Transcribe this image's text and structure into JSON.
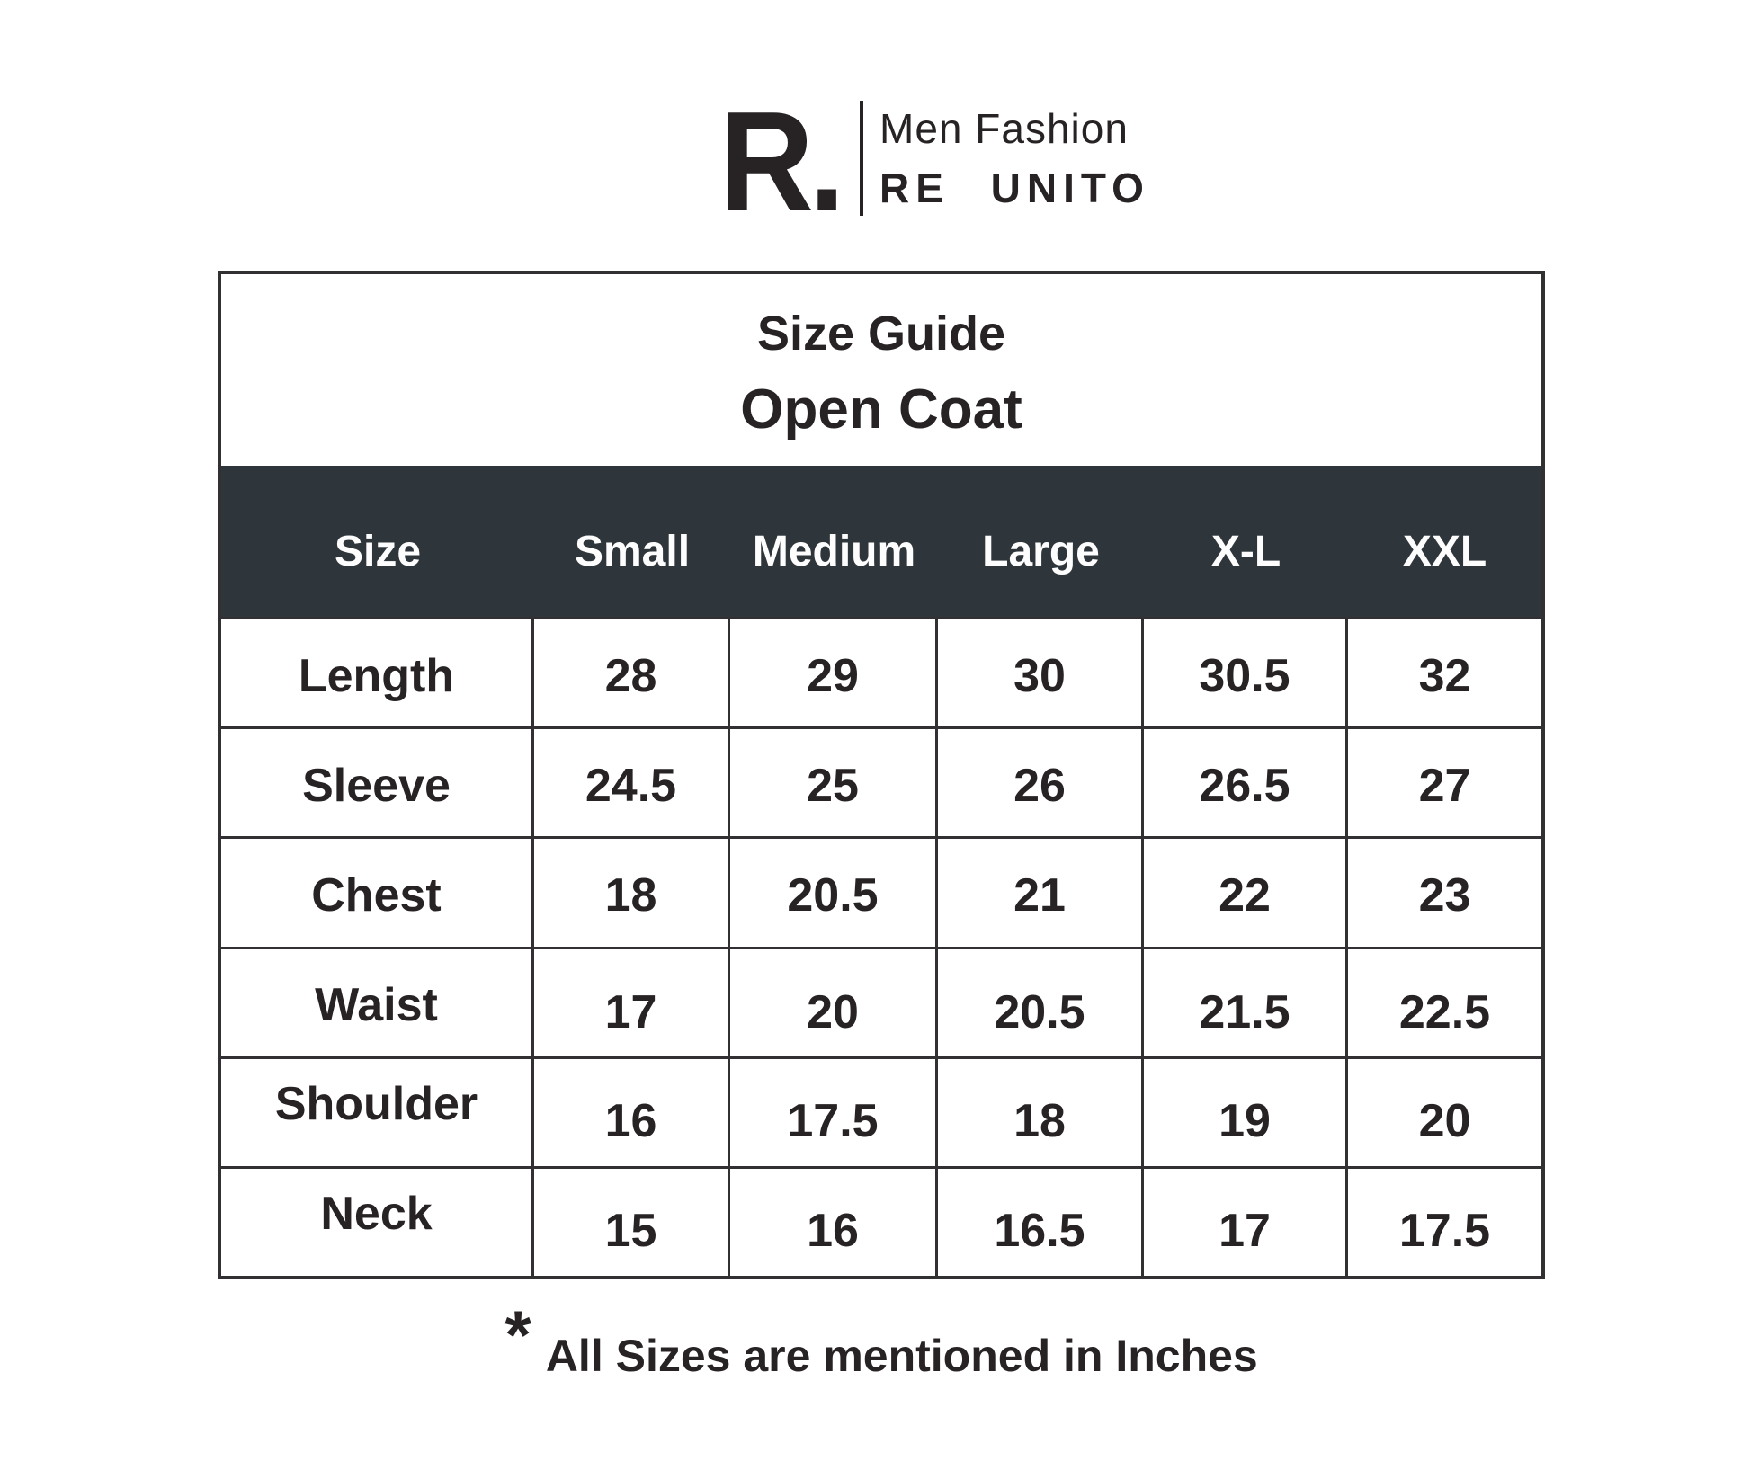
{
  "logo": {
    "monogram": "R.",
    "tagline": "Men Fashion",
    "brand": "RE UNITO"
  },
  "chart_data": {
    "type": "table",
    "title": "Size Guide",
    "subtitle": "Open Coat",
    "columns": [
      "Size",
      "Small",
      "Medium",
      "Large",
      "X-L",
      "XXL"
    ],
    "rows": [
      {
        "label": "Length",
        "values": [
          "28",
          "29",
          "30",
          "30.5",
          "32"
        ]
      },
      {
        "label": "Sleeve",
        "values": [
          "24.5",
          "25",
          "26",
          "26.5",
          "27"
        ]
      },
      {
        "label": "Chest",
        "values": [
          "18",
          "20.5",
          "21",
          "22",
          "23"
        ]
      },
      {
        "label": "Waist",
        "values": [
          "17",
          "20",
          "20.5",
          "21.5",
          "22.5"
        ]
      },
      {
        "label": "Shoulder",
        "values": [
          "16",
          "17.5",
          "18",
          "19",
          "20"
        ]
      },
      {
        "label": "Neck",
        "values": [
          "15",
          "16",
          "16.5",
          "17",
          "17.5"
        ]
      }
    ],
    "footnote_marker": "*",
    "footnote_text": "All Sizes are mentioned in Inches",
    "layout_hints": {
      "header_row": "dark",
      "grid": "on",
      "units": "inches"
    }
  },
  "colors": {
    "header_bg": "#2f363b",
    "header_text": "#fdfdfd",
    "ink": "#272324",
    "border": "#333033",
    "page_bg": "#ffffff"
  }
}
